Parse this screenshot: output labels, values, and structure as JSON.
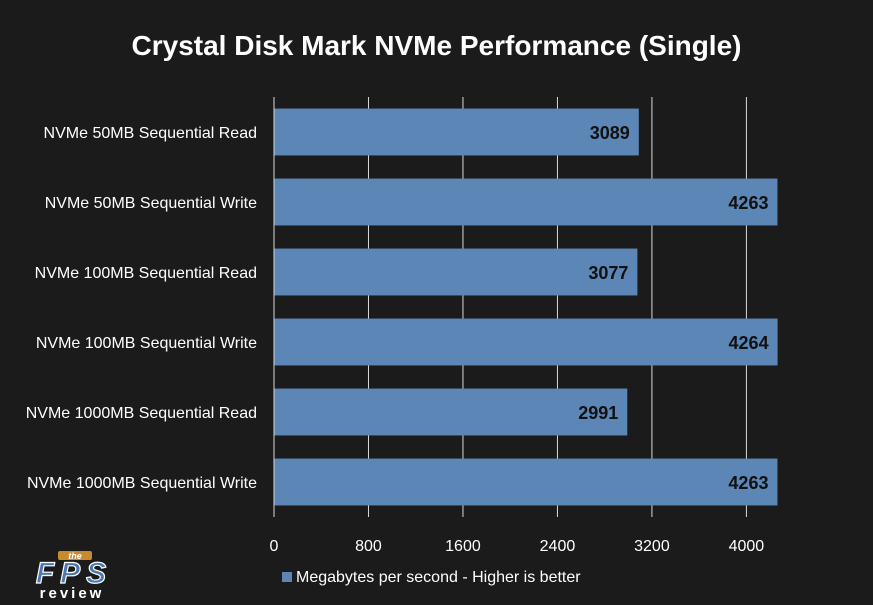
{
  "chart_data": {
    "type": "bar",
    "orientation": "horizontal",
    "title": "Crystal Disk Mark NVMe Performance (Single)",
    "categories": [
      "NVMe 50MB Sequential Read",
      "NVMe 50MB Sequential Write",
      "NVMe 100MB Sequential Read",
      "NVMe 100MB Sequential Write",
      "NVMe 1000MB Sequential Read",
      "NVMe 1000MB Sequential Write"
    ],
    "series": [
      {
        "name": "Megabytes per second - Higher is better",
        "values": [
          3089,
          4263,
          3077,
          4264,
          2991,
          4263
        ],
        "color": "#5b86b5"
      }
    ],
    "xlim": [
      0,
      4640
    ],
    "xticks": [
      0,
      800,
      1600,
      2400,
      3200,
      4000
    ],
    "grid": true,
    "legend_position": "bottom",
    "xlabel": "",
    "ylabel": ""
  },
  "colors": {
    "background": "#1b1b1b",
    "bar": "#5b86b5",
    "gridline": "#d9d9d9",
    "text": "#ffffff",
    "data_label": "#111111"
  },
  "logo": {
    "small": "the",
    "main": "FPS",
    "sub": "review"
  }
}
